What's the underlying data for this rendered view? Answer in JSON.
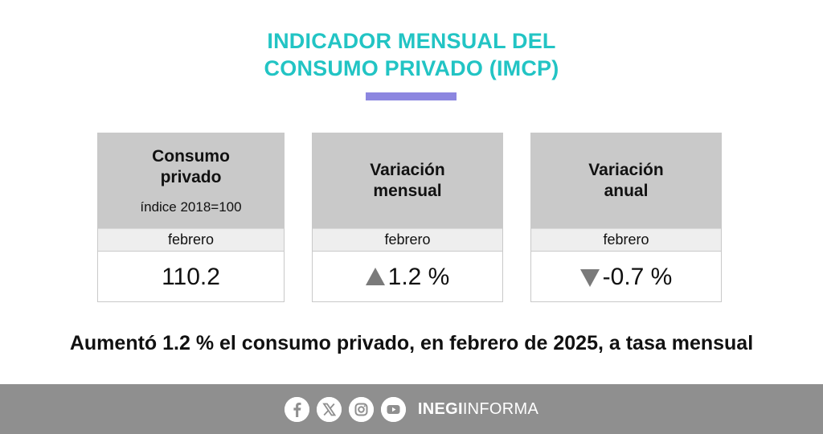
{
  "header": {
    "title_line1": "INDICADOR MENSUAL DEL",
    "title_line2": "CONSUMO PRIVADO (IMCP)",
    "accent_color": "#8c86e0",
    "title_color": "#22c4c4"
  },
  "cards": [
    {
      "title_line1": "Consumo",
      "title_line2": "privado",
      "subtitle": "índice 2018=100",
      "period": "febrero",
      "value": "110.2",
      "trend": "none"
    },
    {
      "title_line1": "Variación",
      "title_line2": "mensual",
      "period": "febrero",
      "value": "1.2 %",
      "trend": "up"
    },
    {
      "title_line1": "Variación",
      "title_line2": "anual",
      "period": "febrero",
      "value": "-0.7 %",
      "trend": "down"
    }
  ],
  "headline": "Aumentó 1.2 % el consumo privado, en febrero de 2025, a tasa mensual",
  "footer": {
    "brand_bold": "INEGI",
    "brand_light": "INFORMA",
    "icons": [
      "facebook-icon",
      "x-icon",
      "instagram-icon",
      "youtube-icon"
    ]
  }
}
